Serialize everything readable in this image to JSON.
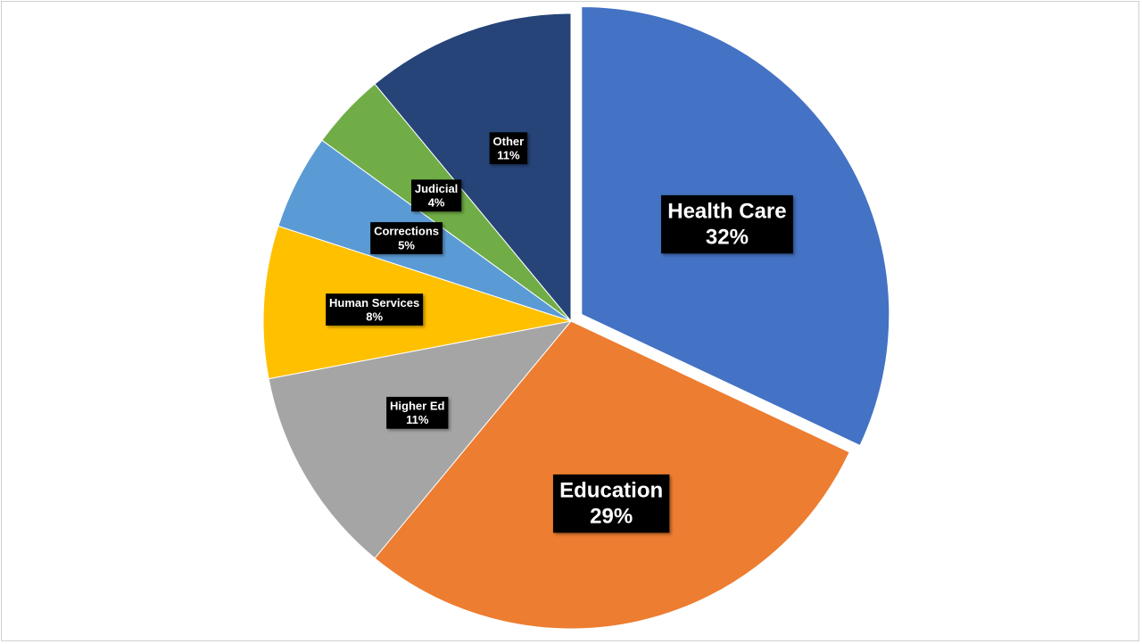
{
  "chart_data": {
    "type": "pie",
    "title": "",
    "start_angle_deg": 0,
    "direction": "clockwise",
    "slices": [
      {
        "label": "Health Care",
        "percent_label": "32%",
        "value": 32,
        "color": "#4472C4",
        "exploded": true
      },
      {
        "label": "Education",
        "percent_label": "29%",
        "value": 29,
        "color": "#ED7D31",
        "exploded": false
      },
      {
        "label": "Higher Ed",
        "percent_label": "11%",
        "value": 11,
        "color": "#A5A5A5",
        "exploded": false
      },
      {
        "label": "Human Services",
        "percent_label": "8%",
        "value": 8,
        "color": "#FFC000",
        "exploded": false
      },
      {
        "label": "Corrections",
        "percent_label": "5%",
        "value": 5,
        "color": "#5B9BD5",
        "exploded": false
      },
      {
        "label": "Judicial",
        "percent_label": "4%",
        "value": 4,
        "color": "#70AD47",
        "exploded": false
      },
      {
        "label": "Other",
        "percent_label": "11%",
        "value": 11,
        "color": "#264478",
        "exploded": false
      }
    ],
    "data_labels": "inside, black box, white bold text",
    "legend": "none"
  }
}
